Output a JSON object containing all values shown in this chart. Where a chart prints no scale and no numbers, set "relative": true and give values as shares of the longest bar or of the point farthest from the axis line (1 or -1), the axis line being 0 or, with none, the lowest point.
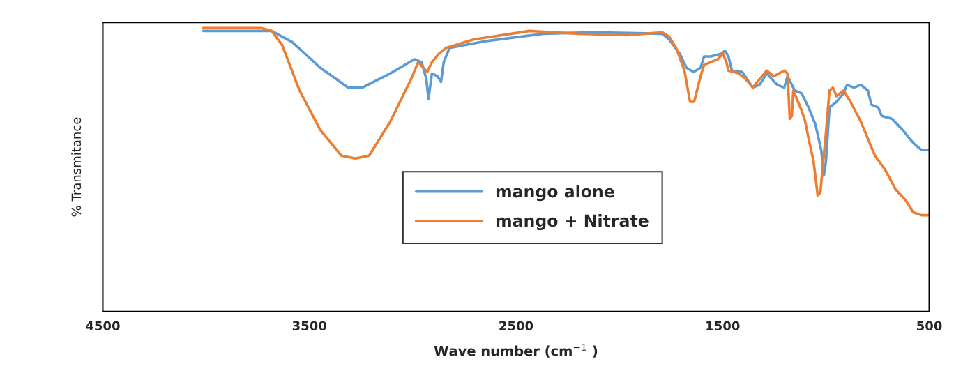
{
  "chart_data": {
    "type": "line",
    "relative": true,
    "xlabel": "Wave number (cm$^{−1}$ )",
    "ylabel": "% Transmitance",
    "xlim": [
      4500,
      500
    ],
    "xticks": [
      4500,
      3500,
      2500,
      1500,
      500
    ],
    "tick_labels": "x",
    "grid": false,
    "legend": "center",
    "marker": "none",
    "line_style": "solid",
    "series": [
      {
        "name": "mango alone",
        "color": "#5b9bd5",
        "x": [
          4014,
          3734,
          3683,
          3582,
          3447,
          3312,
          3244,
          3109,
          2991,
          2957,
          2934,
          2924,
          2907,
          2880,
          2863,
          2850,
          2822,
          2637,
          2367,
          2130,
          1793,
          1759,
          1708,
          1675,
          1641,
          1607,
          1590,
          1557,
          1506,
          1489,
          1472,
          1455,
          1405,
          1354,
          1321,
          1287,
          1236,
          1202,
          1186,
          1151,
          1118,
          1084,
          1051,
          1023,
          1010,
          1000,
          983,
          949,
          915,
          898,
          865,
          831,
          797,
          780,
          747,
          730,
          679,
          628,
          595,
          571,
          537,
          500
        ],
        "values": [
          0.99,
          0.99,
          0.99,
          0.95,
          0.86,
          0.79,
          0.79,
          0.84,
          0.89,
          0.88,
          0.82,
          0.75,
          0.84,
          0.83,
          0.81,
          0.88,
          0.93,
          0.955,
          0.98,
          0.985,
          0.98,
          0.96,
          0.91,
          0.86,
          0.845,
          0.86,
          0.9,
          0.9,
          0.91,
          0.92,
          0.9,
          0.85,
          0.845,
          0.79,
          0.8,
          0.84,
          0.8,
          0.79,
          0.83,
          0.78,
          0.77,
          0.72,
          0.66,
          0.57,
          0.48,
          0.53,
          0.72,
          0.74,
          0.77,
          0.8,
          0.79,
          0.8,
          0.78,
          0.73,
          0.72,
          0.69,
          0.68,
          0.64,
          0.61,
          0.59,
          0.57,
          0.57
        ]
      },
      {
        "name": "mango + Nitrate",
        "color": "#ed7d31",
        "x": [
          4014,
          3734,
          3683,
          3632,
          3548,
          3447,
          3345,
          3278,
          3211,
          3109,
          3008,
          2974,
          2930,
          2907,
          2873,
          2839,
          2704,
          2434,
          2198,
          1962,
          1793,
          1759,
          1725,
          1685,
          1658,
          1638,
          1607,
          1590,
          1557,
          1523,
          1499,
          1482,
          1472,
          1422,
          1388,
          1354,
          1321,
          1287,
          1253,
          1202,
          1186,
          1175,
          1165,
          1158,
          1135,
          1118,
          1100,
          1084,
          1060,
          1040,
          1027,
          1017,
          1000,
          983,
          966,
          949,
          915,
          881,
          831,
          797,
          763,
          713,
          662,
          611,
          578,
          537,
          500
        ],
        "values": [
          1.0,
          1.0,
          0.99,
          0.94,
          0.78,
          0.64,
          0.55,
          0.54,
          0.55,
          0.67,
          0.82,
          0.88,
          0.845,
          0.88,
          0.91,
          0.93,
          0.96,
          0.99,
          0.98,
          0.975,
          0.985,
          0.97,
          0.93,
          0.85,
          0.74,
          0.74,
          0.83,
          0.87,
          0.88,
          0.89,
          0.91,
          0.88,
          0.85,
          0.84,
          0.82,
          0.79,
          0.82,
          0.85,
          0.83,
          0.85,
          0.84,
          0.68,
          0.69,
          0.78,
          0.74,
          0.71,
          0.67,
          0.61,
          0.53,
          0.41,
          0.42,
          0.5,
          0.63,
          0.78,
          0.79,
          0.76,
          0.78,
          0.74,
          0.67,
          0.61,
          0.55,
          0.5,
          0.43,
          0.39,
          0.35,
          0.34,
          0.34
        ]
      }
    ]
  }
}
